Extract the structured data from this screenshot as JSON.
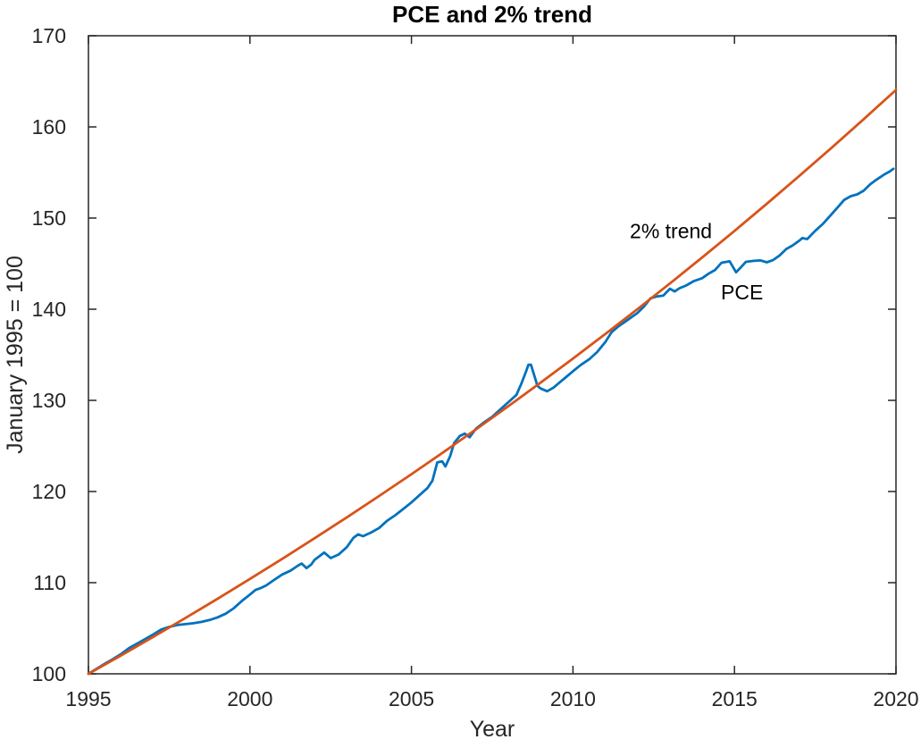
{
  "chart_data": {
    "type": "line",
    "title": "PCE and 2% trend",
    "xlabel": "Year",
    "ylabel": "January 1995 = 100",
    "xlim": [
      1995,
      2020
    ],
    "ylim": [
      100,
      170
    ],
    "xticks": [
      1995,
      2000,
      2005,
      2010,
      2015,
      2020
    ],
    "yticks": [
      100,
      110,
      120,
      130,
      140,
      150,
      160,
      170
    ],
    "grid": false,
    "legend": "none (inline text annotations)",
    "colors": {
      "pce": "#0072BD",
      "trend": "#D95319",
      "axis": "#262626",
      "text": "#262626",
      "title": "#000000",
      "background": "#ffffff"
    },
    "annotations": [
      {
        "id": "trend-label",
        "text": "2% trend",
        "x": 2011.76,
        "y": 148.6
      },
      {
        "id": "pce-label",
        "text": "PCE",
        "x": 2014.58,
        "y": 141.85
      }
    ],
    "series": [
      {
        "name": "PCE",
        "color": "#0072BD",
        "x": [
          1995.0,
          1995.25,
          1995.5,
          1995.75,
          1996.0,
          1996.25,
          1996.5,
          1996.75,
          1997.0,
          1997.25,
          1997.5,
          1997.75,
          1998.0,
          1998.25,
          1998.5,
          1998.75,
          1999.0,
          1999.25,
          1999.5,
          1999.75,
          2000.0,
          2000.17,
          2000.33,
          2000.5,
          2000.75,
          2001.0,
          2001.25,
          2001.5,
          2001.6,
          2001.75,
          2001.9,
          2002.0,
          2002.3,
          2002.5,
          2002.75,
          2003.0,
          2003.2,
          2003.35,
          2003.5,
          2003.75,
          2004.0,
          2004.25,
          2004.5,
          2004.75,
          2005.0,
          2005.25,
          2005.5,
          2005.65,
          2005.8,
          2005.95,
          2006.05,
          2006.2,
          2006.32,
          2006.5,
          2006.65,
          2006.8,
          2007.0,
          2007.25,
          2007.5,
          2007.75,
          2008.0,
          2008.25,
          2008.4,
          2008.55,
          2008.62,
          2008.7,
          2008.8,
          2008.9,
          2009.0,
          2009.2,
          2009.4,
          2009.6,
          2009.8,
          2010.0,
          2010.25,
          2010.5,
          2010.75,
          2011.0,
          2011.2,
          2011.4,
          2011.6,
          2011.8,
          2012.0,
          2012.2,
          2012.4,
          2012.6,
          2012.8,
          2013.0,
          2013.15,
          2013.3,
          2013.5,
          2013.75,
          2014.0,
          2014.2,
          2014.4,
          2014.6,
          2014.85,
          2015.05,
          2015.2,
          2015.35,
          2015.6,
          2015.8,
          2016.0,
          2016.2,
          2016.4,
          2016.6,
          2016.8,
          2017.0,
          2017.1,
          2017.25,
          2017.5,
          2017.75,
          2018.0,
          2018.2,
          2018.4,
          2018.6,
          2018.8,
          2019.0,
          2019.2,
          2019.35,
          2019.5,
          2019.65,
          2019.8,
          2019.92
        ],
        "y": [
          100.0,
          100.55,
          101.1,
          101.6,
          102.15,
          102.8,
          103.3,
          103.8,
          104.3,
          104.85,
          105.15,
          105.35,
          105.45,
          105.55,
          105.7,
          105.9,
          106.2,
          106.6,
          107.2,
          108.0,
          108.7,
          109.2,
          109.4,
          109.7,
          110.3,
          110.9,
          111.3,
          111.9,
          112.1,
          111.6,
          112.0,
          112.5,
          113.3,
          112.7,
          113.1,
          113.9,
          114.9,
          115.3,
          115.1,
          115.5,
          116.0,
          116.8,
          117.4,
          118.1,
          118.8,
          119.6,
          120.4,
          121.2,
          123.2,
          123.3,
          122.75,
          123.9,
          125.3,
          126.1,
          126.35,
          125.95,
          126.9,
          127.6,
          128.2,
          129.0,
          129.8,
          130.6,
          131.8,
          133.2,
          133.9,
          133.9,
          132.75,
          131.6,
          131.3,
          131.0,
          131.4,
          132.0,
          132.6,
          133.2,
          133.9,
          134.5,
          135.3,
          136.4,
          137.5,
          138.1,
          138.6,
          139.1,
          139.6,
          140.3,
          141.2,
          141.4,
          141.5,
          142.25,
          141.95,
          142.3,
          142.6,
          143.1,
          143.4,
          143.9,
          144.3,
          145.1,
          145.25,
          144.05,
          144.6,
          145.2,
          145.3,
          145.35,
          145.15,
          145.4,
          145.9,
          146.6,
          147.0,
          147.5,
          147.8,
          147.7,
          148.6,
          149.4,
          150.4,
          151.2,
          152.0,
          152.4,
          152.6,
          153.0,
          153.7,
          154.1,
          154.45,
          154.8,
          155.1,
          155.4
        ]
      },
      {
        "name": "2% trend",
        "color": "#D95319",
        "x": [
          1995,
          1996,
          1997,
          1998,
          1999,
          2000,
          2001,
          2002,
          2003,
          2004,
          2005,
          2006,
          2007,
          2008,
          2009,
          2010,
          2011,
          2012,
          2013,
          2014,
          2015,
          2016,
          2017,
          2018,
          2019,
          2020
        ],
        "y": [
          100.0,
          102.0,
          104.04,
          106.12,
          108.24,
          110.41,
          112.62,
          114.87,
          117.17,
          119.51,
          121.9,
          124.34,
          126.82,
          129.36,
          131.95,
          134.59,
          137.28,
          140.02,
          142.82,
          145.68,
          148.59,
          151.57,
          154.6,
          157.69,
          160.84,
          164.06
        ]
      }
    ]
  }
}
